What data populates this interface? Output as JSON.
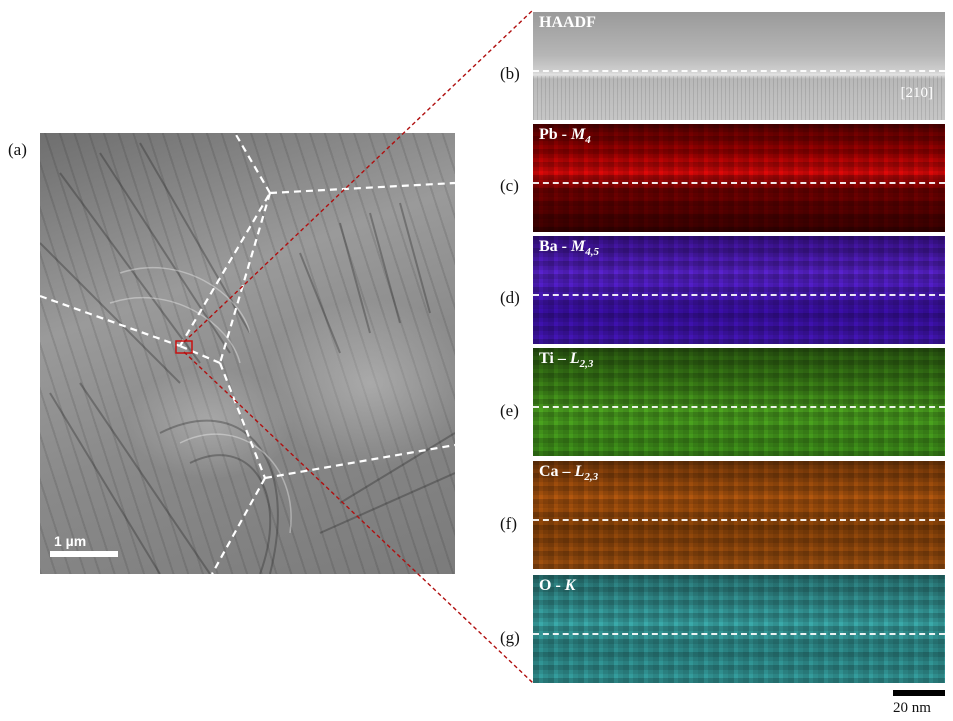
{
  "labels": {
    "a": "(a)",
    "b": "(b)",
    "c": "(c)",
    "d": "(d)",
    "e": "(e)",
    "f": "(f)",
    "g": "(g)"
  },
  "tem_image": {
    "scale_bar": "1 µm"
  },
  "panels": {
    "haadf": {
      "name": "HAADF",
      "zone_axis": "[210]"
    },
    "pb": {
      "element": "Pb - ",
      "edge": "M",
      "sub": "4"
    },
    "ba": {
      "element": "Ba - ",
      "edge": "M",
      "sub": "4,5"
    },
    "ti": {
      "element": "Ti – ",
      "edge": "L",
      "sub": "2,3"
    },
    "ca": {
      "element": "Ca – ",
      "edge": "L",
      "sub": "2,3"
    },
    "o": {
      "element": "O - ",
      "edge": "K",
      "sub": ""
    }
  },
  "map_scale_bar": "20 nm",
  "colors": {
    "pb": "#c00000",
    "ba": "#5018c8",
    "ti": "#44a01c",
    "ca": "#b0580e",
    "o": "#38a6a6",
    "connector": "#b01010"
  }
}
